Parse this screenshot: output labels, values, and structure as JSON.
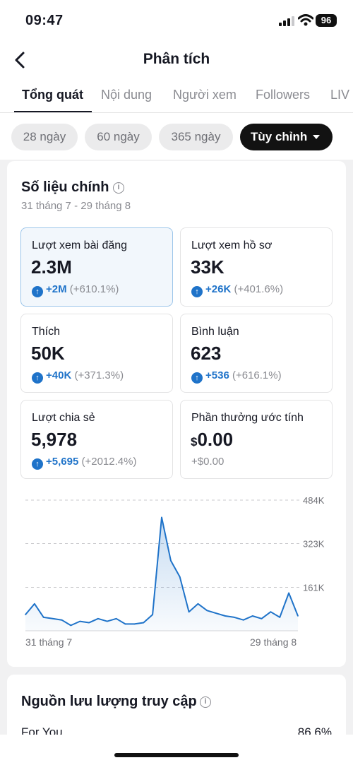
{
  "status_bar": {
    "time": "09:47",
    "battery": "96"
  },
  "header": {
    "title": "Phân tích"
  },
  "tabs": [
    {
      "label": "Tổng quát"
    },
    {
      "label": "Nội dung"
    },
    {
      "label": "Người xem"
    },
    {
      "label": "Followers"
    },
    {
      "label": "LIV"
    }
  ],
  "ranges": [
    {
      "label": "28 ngày"
    },
    {
      "label": "60 ngày"
    },
    {
      "label": "365 ngày"
    },
    {
      "label": "Tùy chỉnh"
    }
  ],
  "key_metrics": {
    "title": "Số liệu chính",
    "date_range": "31 tháng 7 - 29 tháng 8",
    "cards": [
      {
        "label": "Lượt xem bài đăng",
        "value": "2.3M",
        "delta_abs": "+2M",
        "delta_pct": "(+610.1%)"
      },
      {
        "label": "Lượt xem hồ sơ",
        "value": "33K",
        "delta_abs": "+26K",
        "delta_pct": "(+401.6%)"
      },
      {
        "label": "Thích",
        "value": "50K",
        "delta_abs": "+40K",
        "delta_pct": "(+371.3%)"
      },
      {
        "label": "Bình luận",
        "value": "623",
        "delta_abs": "+536",
        "delta_pct": "(+616.1%)"
      },
      {
        "label": "Lượt chia sẻ",
        "value": "5,978",
        "delta_abs": "+5,695",
        "delta_pct": "(+2012.4%)"
      },
      {
        "label": "Phần thưởng ước tính",
        "currency": "$",
        "value": "0.00",
        "delta": "+$0.00"
      }
    ]
  },
  "chart_data": {
    "type": "area",
    "x_start_label": "31 tháng 7",
    "x_end_label": "29 tháng 8",
    "y_ticks": [
      "161K",
      "323K",
      "484K"
    ],
    "y_tick_values": [
      161000,
      323000,
      484000
    ],
    "ylim": [
      0,
      484000
    ],
    "values": [
      60000,
      100000,
      50000,
      45000,
      40000,
      20000,
      35000,
      30000,
      45000,
      35000,
      45000,
      25000,
      25000,
      30000,
      60000,
      420000,
      260000,
      200000,
      70000,
      100000,
      75000,
      65000,
      55000,
      50000,
      40000,
      55000,
      45000,
      70000,
      50000,
      140000,
      55000
    ],
    "series_color": "#1f73c9",
    "grid": true
  },
  "traffic": {
    "title": "Nguồn lưu lượng truy cập",
    "items": [
      {
        "name": "For You",
        "value": "86.6%"
      }
    ]
  }
}
